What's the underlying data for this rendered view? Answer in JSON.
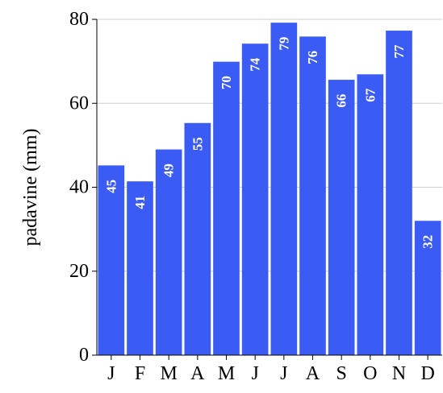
{
  "chart_data": {
    "type": "bar",
    "categories": [
      "J",
      "F",
      "M",
      "A",
      "M",
      "J",
      "J",
      "A",
      "S",
      "O",
      "N",
      "D"
    ],
    "values": [
      45,
      41,
      49,
      55,
      70,
      74,
      79,
      76,
      66,
      67,
      77,
      32
    ],
    "plotted_values": [
      45.2,
      41.4,
      49.0,
      55.3,
      69.9,
      74.2,
      79.2,
      75.9,
      65.6,
      66.9,
      77.3,
      32.0
    ],
    "title": "",
    "xlabel": "",
    "ylabel": "padavine (mm)",
    "ylim": [
      0,
      80
    ],
    "yticks": [
      "0",
      "20",
      "40",
      "60",
      "80"
    ],
    "ytick_values": [
      0,
      20,
      40,
      60,
      80
    ],
    "grid": true,
    "legend": "none",
    "colors": {
      "bar": "#3b5bf5",
      "label": "#ffffff",
      "grid": "#cfcfcf",
      "axis": "#000000",
      "top_line": "#808080"
    }
  }
}
